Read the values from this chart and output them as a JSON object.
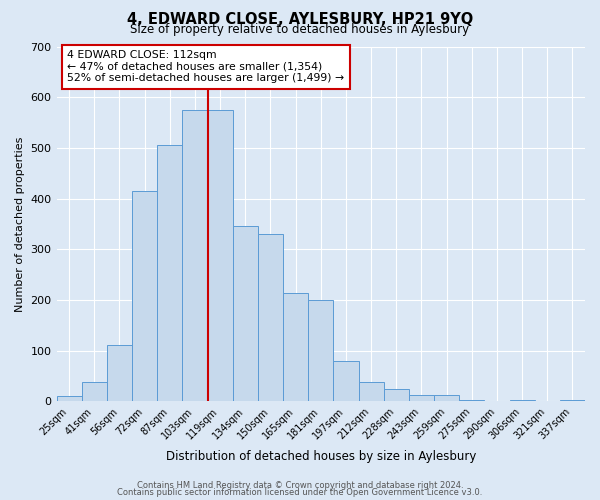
{
  "title": "4, EDWARD CLOSE, AYLESBURY, HP21 9YQ",
  "subtitle": "Size of property relative to detached houses in Aylesbury",
  "xlabel": "Distribution of detached houses by size in Aylesbury",
  "ylabel": "Number of detached properties",
  "bar_labels": [
    "25sqm",
    "41sqm",
    "56sqm",
    "72sqm",
    "87sqm",
    "103sqm",
    "119sqm",
    "134sqm",
    "150sqm",
    "165sqm",
    "181sqm",
    "197sqm",
    "212sqm",
    "228sqm",
    "243sqm",
    "259sqm",
    "275sqm",
    "290sqm",
    "306sqm",
    "321sqm",
    "337sqm"
  ],
  "bar_values": [
    10,
    38,
    112,
    415,
    505,
    575,
    575,
    345,
    330,
    213,
    200,
    80,
    38,
    25,
    13,
    13,
    3,
    0,
    3,
    0,
    3
  ],
  "bar_color": "#c6d9ec",
  "bar_edge_color": "#5b9bd5",
  "background_color": "#dce8f5",
  "vline_x": 5.5,
  "vline_color": "#cc0000",
  "annotation_title": "4 EDWARD CLOSE: 112sqm",
  "annotation_line1": "← 47% of detached houses are smaller (1,354)",
  "annotation_line2": "52% of semi-detached houses are larger (1,499) →",
  "annotation_box_color": "#ffffff",
  "annotation_box_edge": "#cc0000",
  "ylim": [
    0,
    700
  ],
  "yticks": [
    0,
    100,
    200,
    300,
    400,
    500,
    600,
    700
  ],
  "grid_color": "#ffffff",
  "footer1": "Contains HM Land Registry data © Crown copyright and database right 2024.",
  "footer2": "Contains public sector information licensed under the Open Government Licence v3.0."
}
